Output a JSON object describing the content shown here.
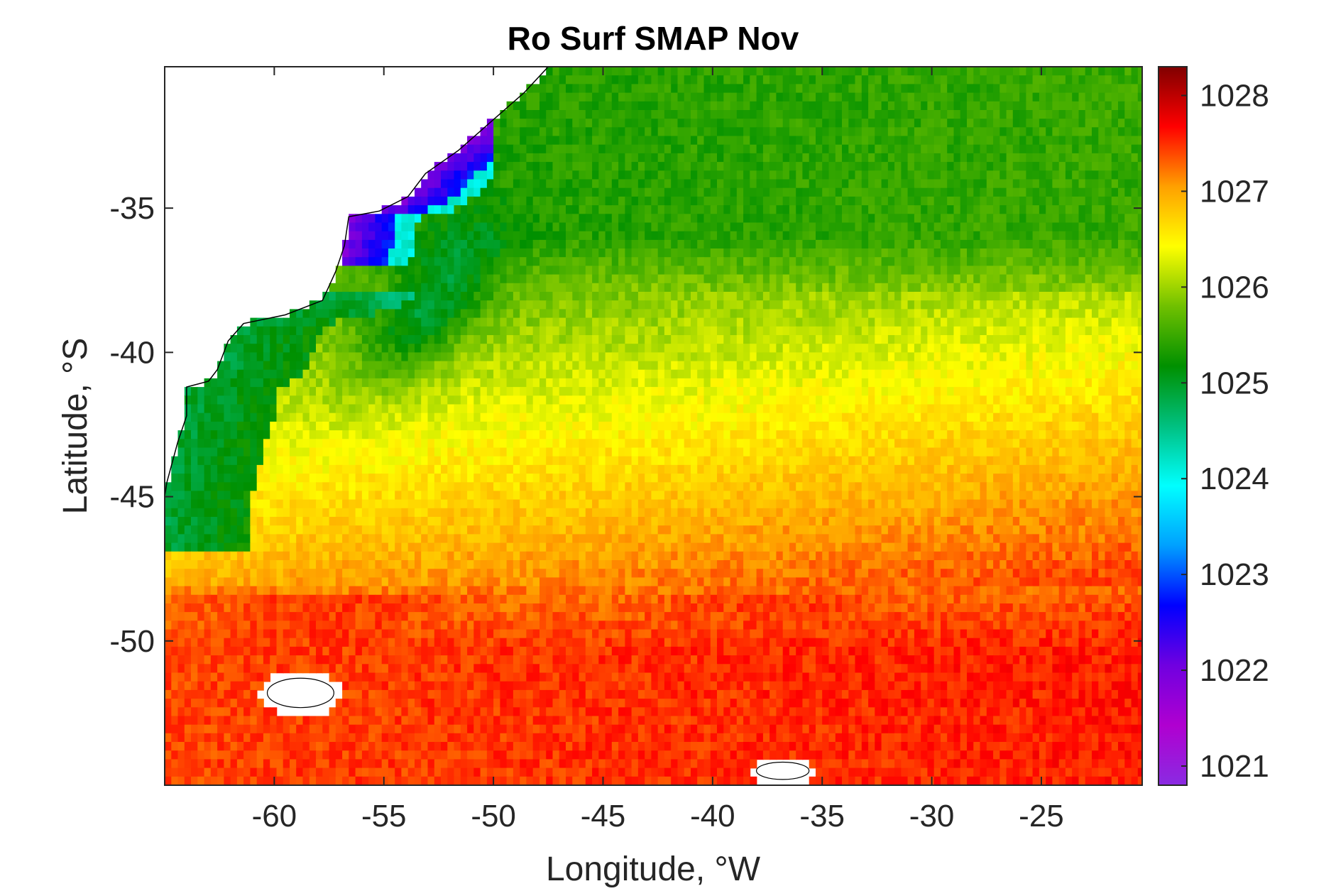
{
  "chart_data": {
    "type": "heatmap",
    "title": "Ro Surf SMAP Nov",
    "xlabel": "Longitude, °W",
    "ylabel": "Latitude, °S",
    "xlim": [
      -65,
      -20.4
    ],
    "ylim": [
      -55,
      -30.1
    ],
    "x_ticks": [
      -60,
      -55,
      -50,
      -45,
      -40,
      -35,
      -30,
      -25
    ],
    "y_ticks": [
      -35,
      -40,
      -45,
      -50
    ],
    "colorbar": {
      "min": 1020.8,
      "max": 1028.3,
      "ticks": [
        1021,
        1022,
        1023,
        1024,
        1025,
        1026,
        1027,
        1028
      ],
      "colormap": [
        "#8a2be2",
        "#b000d0",
        "#7000e0",
        "#0000ff",
        "#00a0ff",
        "#00ffff",
        "#00c080",
        "#009000",
        "#70c000",
        "#ffff00",
        "#ffa000",
        "#ff0000",
        "#800000"
      ]
    },
    "grid": false,
    "land_color": "#ffffff",
    "field_summary": [
      {
        "region": "north of -37, east of -48",
        "value": 1025.4
      },
      {
        "region": "coastal shelf -58 to -50 near -35",
        "value": 1022.0
      },
      {
        "region": "coastal band -45 to -40",
        "value": 1025.0
      },
      {
        "region": "central ocean -40",
        "value": 1026.0
      },
      {
        "region": "south of -48",
        "value": 1027.4
      }
    ],
    "islands": [
      {
        "name": "",
        "lon": -58.8,
        "lat": -51.8
      },
      {
        "name": "",
        "lon": -36.8,
        "lat": -54.4
      }
    ]
  }
}
